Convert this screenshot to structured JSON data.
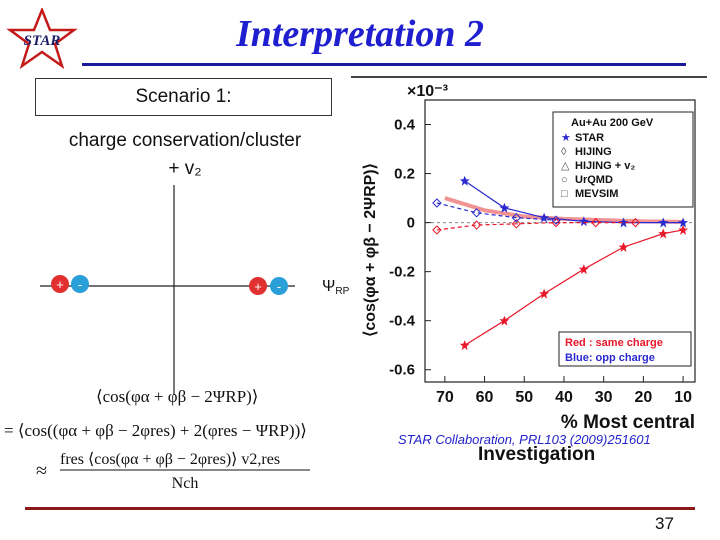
{
  "slide": {
    "logo_text": "STAR",
    "title": "Interpretation 2",
    "scenario_label": "Scenario 1:",
    "cc_line1": "charge conservation/cluster",
    "cc_line2": "+ v₂",
    "psi_label": "Ψ",
    "psi_sub": "RP",
    "citation": "STAR Collaboration, PRL103 (2009)251601",
    "investigation": "Investigation",
    "page_number": "37",
    "colors": {
      "title": "#1f1fd0",
      "rule": "#1a1a99",
      "footer_rule": "#8b1a1a",
      "plus_charge": "#e03030",
      "minus_charge": "#2a9fd8"
    }
  },
  "diagram": {
    "left_pair": [
      "+",
      "-"
    ],
    "right_pair": [
      "+",
      "-"
    ]
  },
  "equation": {
    "line1": "⟨cos(φα + φβ − 2ΨRP)⟩",
    "line2": "= ⟨cos((φα + φβ − 2φres) + 2(φres − ΨRP))⟩",
    "line3_num": "fres ⟨cos(φα + φβ − 2φres)⟩ v2,res",
    "line3_den": "Nch",
    "approx": "≈"
  },
  "chart_data": {
    "type": "scatter",
    "multiplier": "×10⁻³",
    "ylabel": "⟨cos(φα + φβ − 2ΨRP)⟩",
    "xlabel": "% Most central",
    "xlim": [
      75,
      7
    ],
    "ylim": [
      -0.65,
      0.5
    ],
    "x_ticks": [
      70,
      60,
      50,
      40,
      30,
      20,
      10
    ],
    "y_ticks": [
      0.4,
      0.2,
      0,
      -0.2,
      -0.4,
      -0.6
    ],
    "y_tick_labels": [
      "0.4",
      "0.2",
      "0",
      "-0.2",
      "-0.4",
      "-0.6"
    ],
    "legend_title": "Au+Au 200 GeV",
    "legend": [
      "STAR",
      "HIJING",
      "HIJING + v₂",
      "UrQMD",
      "MEVSIM"
    ],
    "charge_note_red": "Red : same charge",
    "charge_note_blue": "Blue:  opp charge",
    "series": [
      {
        "name": "STAR",
        "charge": "same",
        "color": "#e8182a",
        "x": [
          65,
          55,
          45,
          35,
          25,
          15,
          10
        ],
        "y": [
          -0.5,
          -0.4,
          -0.29,
          -0.19,
          -0.1,
          -0.045,
          -0.03
        ]
      },
      {
        "name": "STAR",
        "charge": "opp",
        "color": "#2a2ad0",
        "x": [
          65,
          55,
          45,
          35,
          25,
          15,
          10
        ],
        "y": [
          0.17,
          0.06,
          0.02,
          0.005,
          0.0,
          0.0,
          0.0
        ]
      },
      {
        "name": "HIJING",
        "charge": "same",
        "color": "#e8182a",
        "x": [
          72,
          62,
          52,
          42,
          32,
          22
        ],
        "y": [
          -0.03,
          -0.01,
          -0.005,
          0.0,
          0.0,
          0.0
        ]
      },
      {
        "name": "HIJING",
        "charge": "opp",
        "color": "#2a2ad0",
        "x": [
          72,
          62,
          52,
          42
        ],
        "y": [
          0.08,
          0.04,
          0.02,
          0.01
        ]
      }
    ],
    "theory_band": {
      "name": "charge conservation + v2",
      "color": "#f08080",
      "x": [
        70,
        60,
        50,
        40,
        30,
        20,
        10
      ],
      "y": [
        0.1,
        0.05,
        0.025,
        0.015,
        0.01,
        0.005,
        0.003
      ]
    }
  }
}
